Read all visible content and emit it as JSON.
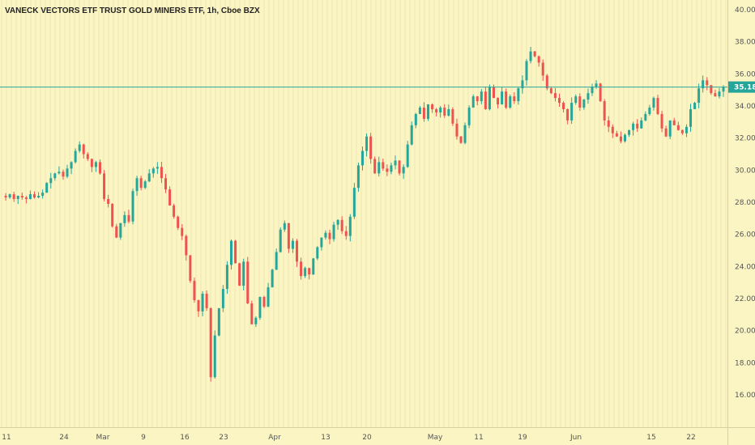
{
  "chart_data": {
    "type": "candlestick",
    "title": "VANECK VECTORS ETF TRUST GOLD MINERS ETF, 1h, Cboe BZX",
    "ylim": [
      15,
      41
    ],
    "y_ticks": [
      "40.00",
      "38.00",
      "36.00",
      "34.00",
      "32.00",
      "30.00",
      "28.00",
      "26.00",
      "24.00",
      "22.00",
      "20.00",
      "18.00",
      "16.00"
    ],
    "y_tick_values": [
      40,
      38,
      36,
      34,
      32,
      30,
      28,
      26,
      24,
      22,
      20,
      18,
      16
    ],
    "x_ticks": [
      "11",
      "24",
      "Mar",
      "9",
      "16",
      "23",
      "Apr",
      "13",
      "20",
      "May",
      "11",
      "19",
      "Jun",
      "15",
      "22"
    ],
    "last_price": "35.18",
    "last_price_value": 35.18,
    "colors": {
      "up": "#26a69a",
      "down": "#ef5350",
      "background": "#fbf5c4",
      "price_line": "#26a69a",
      "gridline": "#efe8b0"
    },
    "grid": "vertical",
    "close_path": [
      28.4,
      28.3,
      28.5,
      28.2,
      28.4,
      28.3,
      28.2,
      28.5,
      28.3,
      28.4,
      28.6,
      29.2,
      29.5,
      29.8,
      29.9,
      29.6,
      30.1,
      30.5,
      31.2,
      31.6,
      31.0,
      30.7,
      30.2,
      30.5,
      29.8,
      28.2,
      27.9,
      26.5,
      25.8,
      26.7,
      27.2,
      26.8,
      28.7,
      29.5,
      28.9,
      29.3,
      29.8,
      30.1,
      30.2,
      29.5,
      28.8,
      27.8,
      27.1,
      26.4,
      25.9,
      24.7,
      23.1,
      21.9,
      21.2,
      22.3,
      21.4,
      17.1,
      19.7,
      21.4,
      22.6,
      24.1,
      25.6,
      24.2,
      22.8,
      24.3,
      21.7,
      20.4,
      20.8,
      22.1,
      21.5,
      22.7,
      23.8,
      24.9,
      26.3,
      26.7,
      25.1,
      25.6,
      24.3,
      23.4,
      23.9,
      23.5,
      24.5,
      25.2,
      25.8,
      26.1,
      25.7,
      26.6,
      26.9,
      26.2,
      25.9,
      27.1,
      28.9,
      30.3,
      31.2,
      32.1,
      30.7,
      29.8,
      30.5,
      30.1,
      29.9,
      30.3,
      30.6,
      29.8,
      30.2,
      31.6,
      32.8,
      33.5,
      33.9,
      33.2,
      34.1,
      33.8,
      33.6,
      33.9,
      33.4,
      33.8,
      32.9,
      32.1,
      31.7,
      32.8,
      33.9,
      34.6,
      34.3,
      34.9,
      33.8,
      35.2,
      34.5,
      34.1,
      34.9,
      33.9,
      34.6,
      34.3,
      35.1,
      35.6,
      36.8,
      37.4,
      37.1,
      36.7,
      35.9,
      35.1,
      34.8,
      34.5,
      34.2,
      33.8,
      33.1,
      34.2,
      34.6,
      33.9,
      34.4,
      34.8,
      35.2,
      35.4,
      34.3,
      33.1,
      32.7,
      32.3,
      32.1,
      31.8,
      32.2,
      32.5,
      32.9,
      32.6,
      33.1,
      33.5,
      33.9,
      34.5,
      33.5,
      32.6,
      32.1,
      33.1,
      32.8,
      32.5,
      32.3,
      32.7,
      33.8,
      34.2,
      35.1,
      35.6,
      35.3,
      34.8,
      34.6,
      34.9,
      35.2
    ]
  }
}
